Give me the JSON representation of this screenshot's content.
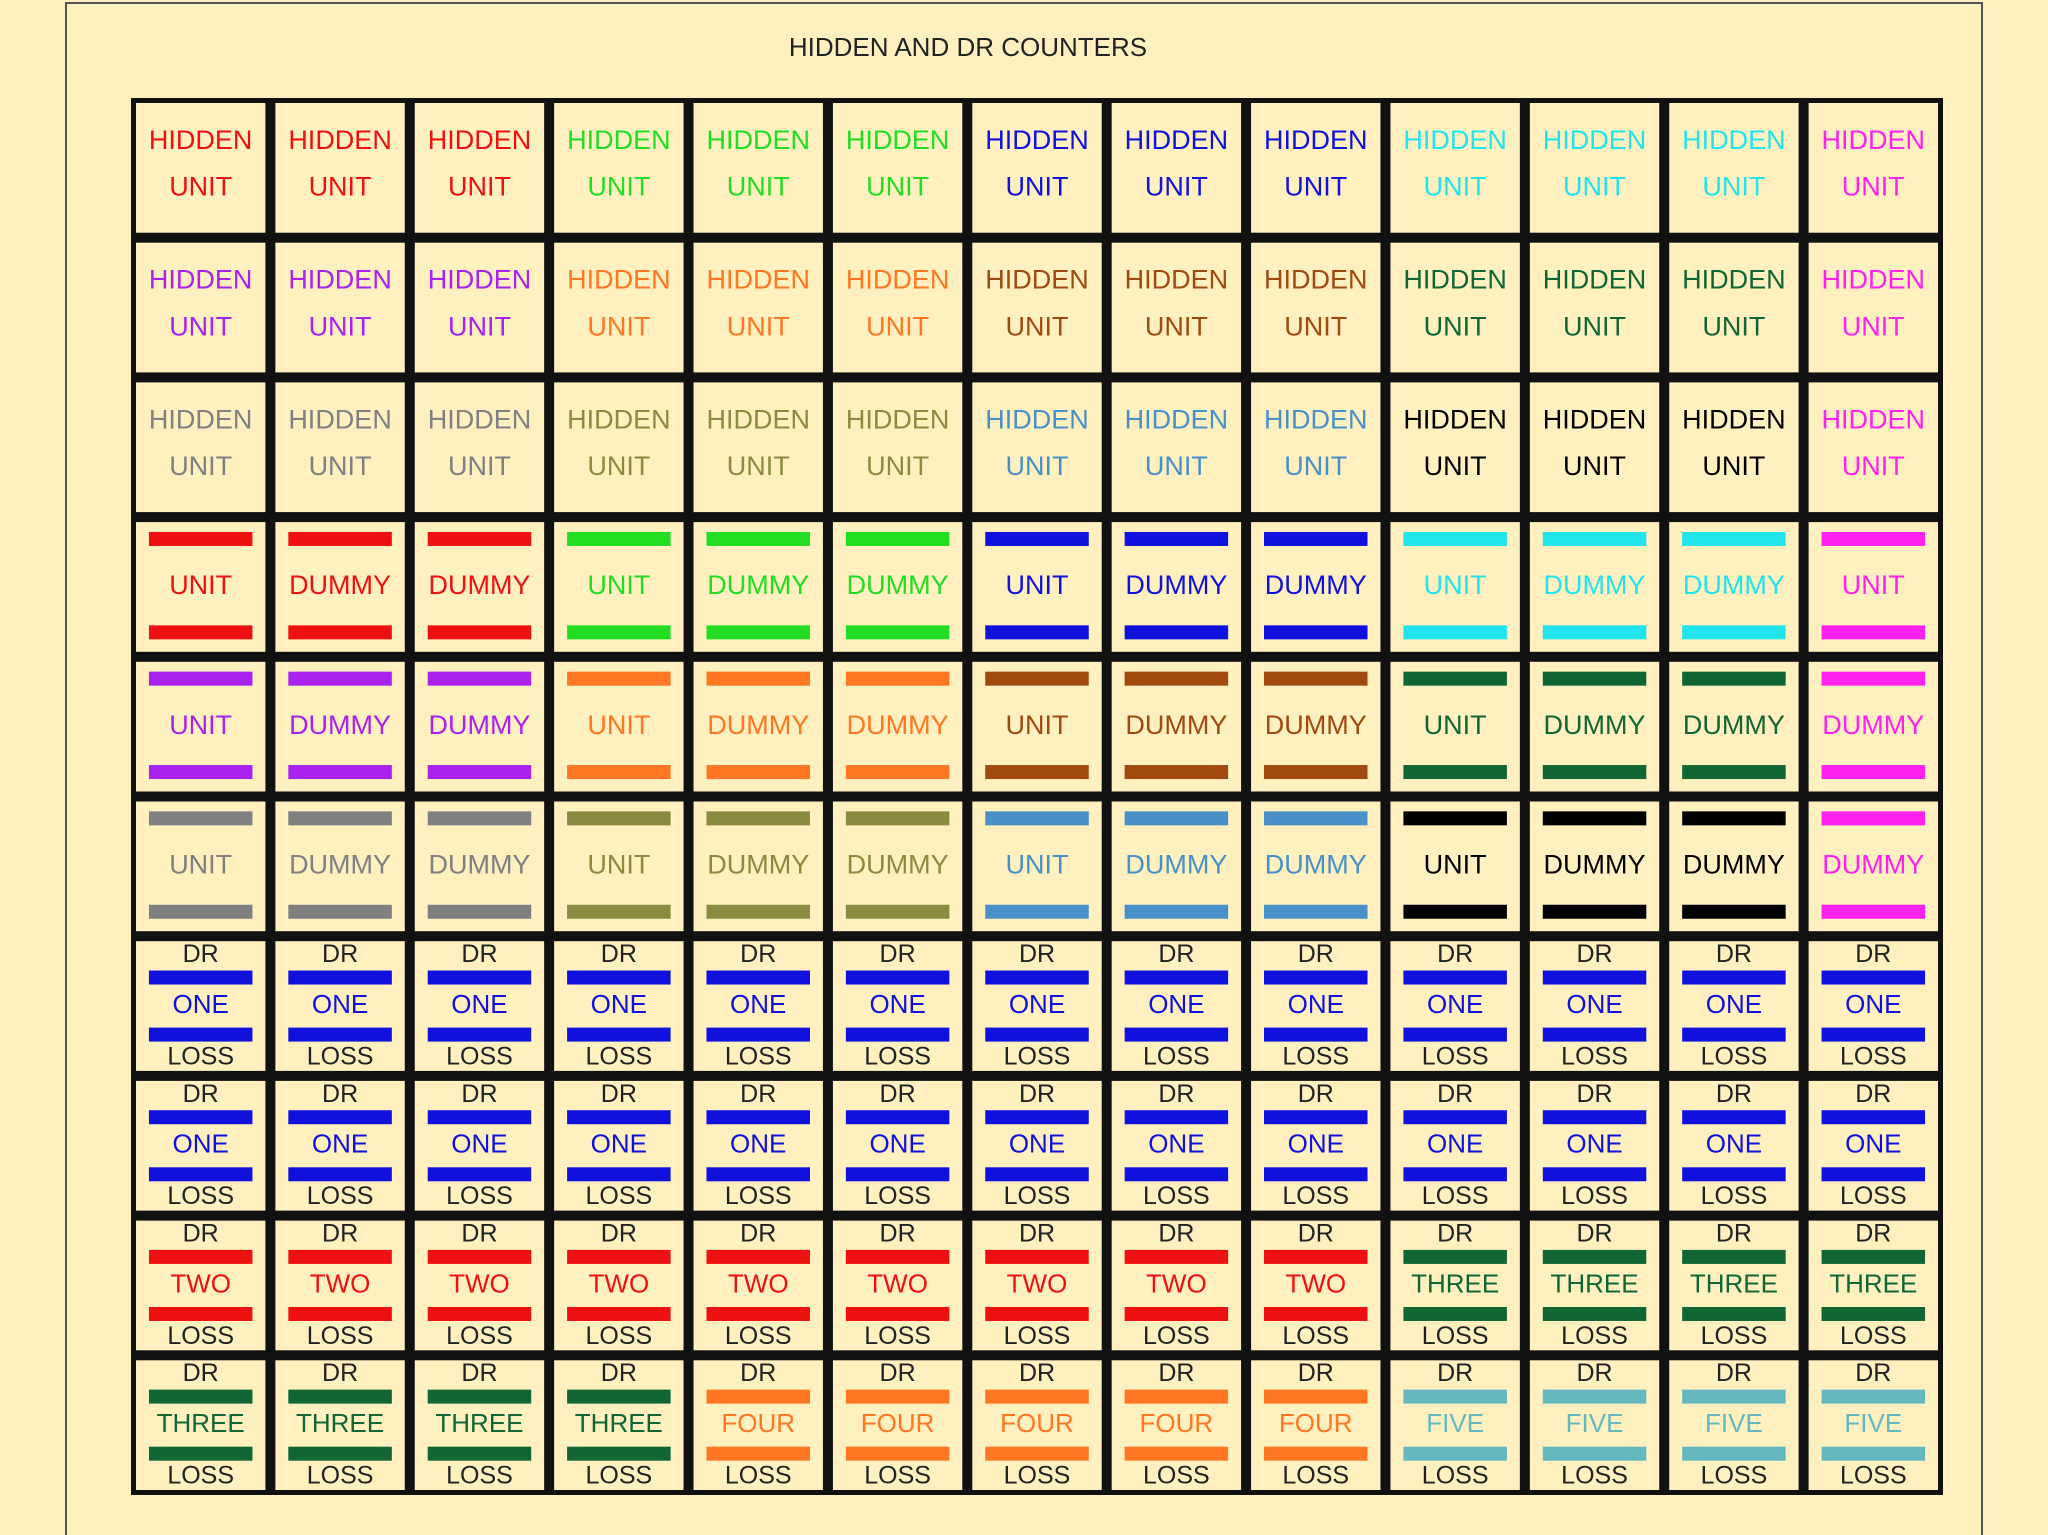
{
  "title": "HIDDEN AND DR COUNTERS",
  "rows": [
    [
      {
        "lines": [
          "HIDDEN",
          "UNIT"
        ],
        "color": "#ee1111"
      },
      {
        "lines": [
          "HIDDEN",
          "UNIT"
        ],
        "color": "#ee1111"
      },
      {
        "lines": [
          "HIDDEN",
          "UNIT"
        ],
        "color": "#ee1111"
      },
      {
        "lines": [
          "HIDDEN",
          "UNIT"
        ],
        "color": "#22dd22"
      },
      {
        "lines": [
          "HIDDEN",
          "UNIT"
        ],
        "color": "#22dd22"
      },
      {
        "lines": [
          "HIDDEN",
          "UNIT"
        ],
        "color": "#22dd22"
      },
      {
        "lines": [
          "HIDDEN",
          "UNIT"
        ],
        "color": "#1111dd"
      },
      {
        "lines": [
          "HIDDEN",
          "UNIT"
        ],
        "color": "#1111dd"
      },
      {
        "lines": [
          "HIDDEN",
          "UNIT"
        ],
        "color": "#1111dd"
      },
      {
        "lines": [
          "HIDDEN",
          "UNIT"
        ],
        "color": "#22e4ec"
      },
      {
        "lines": [
          "HIDDEN",
          "UNIT"
        ],
        "color": "#22e4ec"
      },
      {
        "lines": [
          "HIDDEN",
          "UNIT"
        ],
        "color": "#22e4ec"
      },
      {
        "lines": [
          "HIDDEN",
          "UNIT"
        ],
        "color": "#ff22ee"
      }
    ],
    [
      {
        "lines": [
          "HIDDEN",
          "UNIT"
        ],
        "color": "#aa22ee"
      },
      {
        "lines": [
          "HIDDEN",
          "UNIT"
        ],
        "color": "#aa22ee"
      },
      {
        "lines": [
          "HIDDEN",
          "UNIT"
        ],
        "color": "#aa22ee"
      },
      {
        "lines": [
          "HIDDEN",
          "UNIT"
        ],
        "color": "#ff7722"
      },
      {
        "lines": [
          "HIDDEN",
          "UNIT"
        ],
        "color": "#ff7722"
      },
      {
        "lines": [
          "HIDDEN",
          "UNIT"
        ],
        "color": "#ff7722"
      },
      {
        "lines": [
          "HIDDEN",
          "UNIT"
        ],
        "color": "#a04a10"
      },
      {
        "lines": [
          "HIDDEN",
          "UNIT"
        ],
        "color": "#a04a10"
      },
      {
        "lines": [
          "HIDDEN",
          "UNIT"
        ],
        "color": "#a04a10"
      },
      {
        "lines": [
          "HIDDEN",
          "UNIT"
        ],
        "color": "#116633"
      },
      {
        "lines": [
          "HIDDEN",
          "UNIT"
        ],
        "color": "#116633"
      },
      {
        "lines": [
          "HIDDEN",
          "UNIT"
        ],
        "color": "#116633"
      },
      {
        "lines": [
          "HIDDEN",
          "UNIT"
        ],
        "color": "#ff22ee"
      }
    ],
    [
      {
        "lines": [
          "HIDDEN",
          "UNIT"
        ],
        "color": "#808080"
      },
      {
        "lines": [
          "HIDDEN",
          "UNIT"
        ],
        "color": "#808080"
      },
      {
        "lines": [
          "HIDDEN",
          "UNIT"
        ],
        "color": "#808080"
      },
      {
        "lines": [
          "HIDDEN",
          "UNIT"
        ],
        "color": "#8a8a40"
      },
      {
        "lines": [
          "HIDDEN",
          "UNIT"
        ],
        "color": "#8a8a40"
      },
      {
        "lines": [
          "HIDDEN",
          "UNIT"
        ],
        "color": "#8a8a40"
      },
      {
        "lines": [
          "HIDDEN",
          "UNIT"
        ],
        "color": "#4a90c8"
      },
      {
        "lines": [
          "HIDDEN",
          "UNIT"
        ],
        "color": "#4a90c8"
      },
      {
        "lines": [
          "HIDDEN",
          "UNIT"
        ],
        "color": "#4a90c8"
      },
      {
        "lines": [
          "HIDDEN",
          "UNIT"
        ],
        "color": "#000000"
      },
      {
        "lines": [
          "HIDDEN",
          "UNIT"
        ],
        "color": "#000000"
      },
      {
        "lines": [
          "HIDDEN",
          "UNIT"
        ],
        "color": "#000000"
      },
      {
        "lines": [
          "HIDDEN",
          "UNIT"
        ],
        "color": "#ff22ee"
      }
    ],
    [
      {
        "lines": [
          "UNIT"
        ],
        "color": "#ee1111"
      },
      {
        "lines": [
          "DUMMY"
        ],
        "color": "#ee1111"
      },
      {
        "lines": [
          "DUMMY"
        ],
        "color": "#ee1111"
      },
      {
        "lines": [
          "UNIT"
        ],
        "color": "#22dd22"
      },
      {
        "lines": [
          "DUMMY"
        ],
        "color": "#22dd22"
      },
      {
        "lines": [
          "DUMMY"
        ],
        "color": "#22dd22"
      },
      {
        "lines": [
          "UNIT"
        ],
        "color": "#1111dd"
      },
      {
        "lines": [
          "DUMMY"
        ],
        "color": "#1111dd"
      },
      {
        "lines": [
          "DUMMY"
        ],
        "color": "#1111dd"
      },
      {
        "lines": [
          "UNIT"
        ],
        "color": "#22e4ec"
      },
      {
        "lines": [
          "DUMMY"
        ],
        "color": "#22e4ec"
      },
      {
        "lines": [
          "DUMMY"
        ],
        "color": "#22e4ec"
      },
      {
        "lines": [
          "UNIT"
        ],
        "color": "#ff22ee"
      }
    ],
    [
      {
        "lines": [
          "UNIT"
        ],
        "color": "#aa22ee"
      },
      {
        "lines": [
          "DUMMY"
        ],
        "color": "#aa22ee"
      },
      {
        "lines": [
          "DUMMY"
        ],
        "color": "#aa22ee"
      },
      {
        "lines": [
          "UNIT"
        ],
        "color": "#ff7722"
      },
      {
        "lines": [
          "DUMMY"
        ],
        "color": "#ff7722"
      },
      {
        "lines": [
          "DUMMY"
        ],
        "color": "#ff7722"
      },
      {
        "lines": [
          "UNIT"
        ],
        "color": "#a04a10"
      },
      {
        "lines": [
          "DUMMY"
        ],
        "color": "#a04a10"
      },
      {
        "lines": [
          "DUMMY"
        ],
        "color": "#a04a10"
      },
      {
        "lines": [
          "UNIT"
        ],
        "color": "#116633"
      },
      {
        "lines": [
          "DUMMY"
        ],
        "color": "#116633"
      },
      {
        "lines": [
          "DUMMY"
        ],
        "color": "#116633"
      },
      {
        "lines": [
          "DUMMY"
        ],
        "color": "#ff22ee"
      }
    ],
    [
      {
        "lines": [
          "UNIT"
        ],
        "color": "#808080"
      },
      {
        "lines": [
          "DUMMY"
        ],
        "color": "#808080"
      },
      {
        "lines": [
          "DUMMY"
        ],
        "color": "#808080"
      },
      {
        "lines": [
          "UNIT"
        ],
        "color": "#8a8a40"
      },
      {
        "lines": [
          "DUMMY"
        ],
        "color": "#8a8a40"
      },
      {
        "lines": [
          "DUMMY"
        ],
        "color": "#8a8a40"
      },
      {
        "lines": [
          "UNIT"
        ],
        "color": "#4a90c8"
      },
      {
        "lines": [
          "DUMMY"
        ],
        "color": "#4a90c8"
      },
      {
        "lines": [
          "DUMMY"
        ],
        "color": "#4a90c8"
      },
      {
        "lines": [
          "UNIT"
        ],
        "color": "#000000"
      },
      {
        "lines": [
          "DUMMY"
        ],
        "color": "#000000"
      },
      {
        "lines": [
          "DUMMY"
        ],
        "color": "#000000"
      },
      {
        "lines": [
          "DUMMY"
        ],
        "color": "#ff22ee"
      }
    ],
    [
      {
        "lines": [
          "DR",
          "ONE",
          "LOSS"
        ],
        "color": "#1111dd"
      },
      {
        "lines": [
          "DR",
          "ONE",
          "LOSS"
        ],
        "color": "#1111dd"
      },
      {
        "lines": [
          "DR",
          "ONE",
          "LOSS"
        ],
        "color": "#1111dd"
      },
      {
        "lines": [
          "DR",
          "ONE",
          "LOSS"
        ],
        "color": "#1111dd"
      },
      {
        "lines": [
          "DR",
          "ONE",
          "LOSS"
        ],
        "color": "#1111dd"
      },
      {
        "lines": [
          "DR",
          "ONE",
          "LOSS"
        ],
        "color": "#1111dd"
      },
      {
        "lines": [
          "DR",
          "ONE",
          "LOSS"
        ],
        "color": "#1111dd"
      },
      {
        "lines": [
          "DR",
          "ONE",
          "LOSS"
        ],
        "color": "#1111dd"
      },
      {
        "lines": [
          "DR",
          "ONE",
          "LOSS"
        ],
        "color": "#1111dd"
      },
      {
        "lines": [
          "DR",
          "ONE",
          "LOSS"
        ],
        "color": "#1111dd"
      },
      {
        "lines": [
          "DR",
          "ONE",
          "LOSS"
        ],
        "color": "#1111dd"
      },
      {
        "lines": [
          "DR",
          "ONE",
          "LOSS"
        ],
        "color": "#1111dd"
      },
      {
        "lines": [
          "DR",
          "ONE",
          "LOSS"
        ],
        "color": "#1111dd"
      }
    ],
    [
      {
        "lines": [
          "DR",
          "ONE",
          "LOSS"
        ],
        "color": "#1111dd"
      },
      {
        "lines": [
          "DR",
          "ONE",
          "LOSS"
        ],
        "color": "#1111dd"
      },
      {
        "lines": [
          "DR",
          "ONE",
          "LOSS"
        ],
        "color": "#1111dd"
      },
      {
        "lines": [
          "DR",
          "ONE",
          "LOSS"
        ],
        "color": "#1111dd"
      },
      {
        "lines": [
          "DR",
          "ONE",
          "LOSS"
        ],
        "color": "#1111dd"
      },
      {
        "lines": [
          "DR",
          "ONE",
          "LOSS"
        ],
        "color": "#1111dd"
      },
      {
        "lines": [
          "DR",
          "ONE",
          "LOSS"
        ],
        "color": "#1111dd"
      },
      {
        "lines": [
          "DR",
          "ONE",
          "LOSS"
        ],
        "color": "#1111dd"
      },
      {
        "lines": [
          "DR",
          "ONE",
          "LOSS"
        ],
        "color": "#1111dd"
      },
      {
        "lines": [
          "DR",
          "ONE",
          "LOSS"
        ],
        "color": "#1111dd"
      },
      {
        "lines": [
          "DR",
          "ONE",
          "LOSS"
        ],
        "color": "#1111dd"
      },
      {
        "lines": [
          "DR",
          "ONE",
          "LOSS"
        ],
        "color": "#1111dd"
      },
      {
        "lines": [
          "DR",
          "ONE",
          "LOSS"
        ],
        "color": "#1111dd"
      }
    ],
    [
      {
        "lines": [
          "DR",
          "TWO",
          "LOSS"
        ],
        "color": "#ee1111"
      },
      {
        "lines": [
          "DR",
          "TWO",
          "LOSS"
        ],
        "color": "#ee1111"
      },
      {
        "lines": [
          "DR",
          "TWO",
          "LOSS"
        ],
        "color": "#ee1111"
      },
      {
        "lines": [
          "DR",
          "TWO",
          "LOSS"
        ],
        "color": "#ee1111"
      },
      {
        "lines": [
          "DR",
          "TWO",
          "LOSS"
        ],
        "color": "#ee1111"
      },
      {
        "lines": [
          "DR",
          "TWO",
          "LOSS"
        ],
        "color": "#ee1111"
      },
      {
        "lines": [
          "DR",
          "TWO",
          "LOSS"
        ],
        "color": "#ee1111"
      },
      {
        "lines": [
          "DR",
          "TWO",
          "LOSS"
        ],
        "color": "#ee1111"
      },
      {
        "lines": [
          "DR",
          "TWO",
          "LOSS"
        ],
        "color": "#ee1111"
      },
      {
        "lines": [
          "DR",
          "THREE",
          "LOSS"
        ],
        "color": "#116633"
      },
      {
        "lines": [
          "DR",
          "THREE",
          "LOSS"
        ],
        "color": "#116633"
      },
      {
        "lines": [
          "DR",
          "THREE",
          "LOSS"
        ],
        "color": "#116633"
      },
      {
        "lines": [
          "DR",
          "THREE",
          "LOSS"
        ],
        "color": "#116633"
      }
    ],
    [
      {
        "lines": [
          "DR",
          "THREE",
          "LOSS"
        ],
        "color": "#116633"
      },
      {
        "lines": [
          "DR",
          "THREE",
          "LOSS"
        ],
        "color": "#116633"
      },
      {
        "lines": [
          "DR",
          "THREE",
          "LOSS"
        ],
        "color": "#116633"
      },
      {
        "lines": [
          "DR",
          "THREE",
          "LOSS"
        ],
        "color": "#116633"
      },
      {
        "lines": [
          "DR",
          "FOUR",
          "LOSS"
        ],
        "color": "#ff7722"
      },
      {
        "lines": [
          "DR",
          "FOUR",
          "LOSS"
        ],
        "color": "#ff7722"
      },
      {
        "lines": [
          "DR",
          "FOUR",
          "LOSS"
        ],
        "color": "#ff7722"
      },
      {
        "lines": [
          "DR",
          "FOUR",
          "LOSS"
        ],
        "color": "#ff7722"
      },
      {
        "lines": [
          "DR",
          "FOUR",
          "LOSS"
        ],
        "color": "#ff7722"
      },
      {
        "lines": [
          "DR",
          "FIVE",
          "LOSS"
        ],
        "color": "#66b8c0"
      },
      {
        "lines": [
          "DR",
          "FIVE",
          "LOSS"
        ],
        "color": "#66b8c0"
      },
      {
        "lines": [
          "DR",
          "FIVE",
          "LOSS"
        ],
        "color": "#66b8c0"
      },
      {
        "lines": [
          "DR",
          "FIVE",
          "LOSS"
        ],
        "color": "#66b8c0"
      }
    ]
  ]
}
